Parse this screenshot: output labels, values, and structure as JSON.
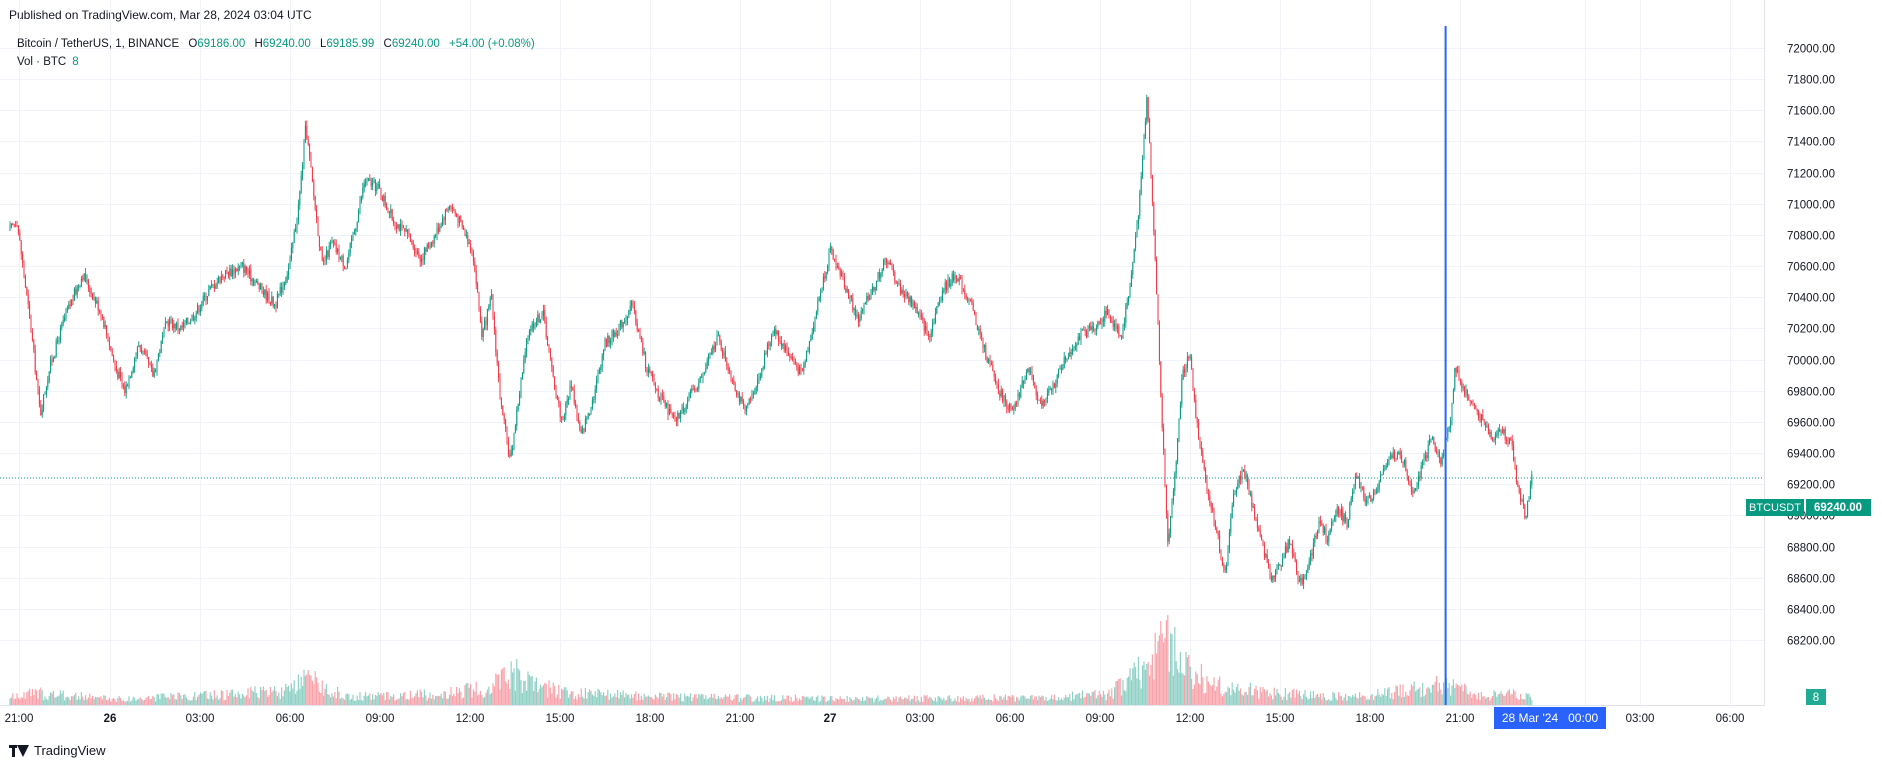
{
  "header": {
    "published": "Published on TradingView.com, Mar 28, 2024 03:04 UTC"
  },
  "legend": {
    "symbol": "Bitcoin / TetherUS, 1, BINANCE",
    "o_label": "O",
    "o_value": "69186.00",
    "h_label": "H",
    "h_value": "69240.00",
    "l_label": "L",
    "l_value": "69185.99",
    "c_label": "C",
    "c_value": "69240.00",
    "change": "+54.00 (+0.08%)",
    "volume_label": "Vol · BTC",
    "volume_value": "8"
  },
  "price_tag": {
    "symbol": "BTCUSDT",
    "value": "69240.00"
  },
  "volume_tag": "8",
  "crosshair_label": "28 Mar '24   00:00",
  "footer": {
    "brand": "TradingView"
  },
  "colors": {
    "up": "#089981",
    "down": "#f23645",
    "crosshair": "#2962ff",
    "grid": "#f0f3fa",
    "axis_text": "#131722"
  },
  "chart_data": {
    "type": "candlestick",
    "symbol": "BTCUSDT",
    "interval": "1",
    "exchange": "BINANCE",
    "last_price": 69240.0,
    "ylim": [
      68000,
      72200
    ],
    "y_ticks": [
      "68200.00",
      "68400.00",
      "68600.00",
      "68800.00",
      "69000.00",
      "69200.00",
      "69400.00",
      "69600.00",
      "69800.00",
      "70000.00",
      "70200.00",
      "70400.00",
      "70600.00",
      "70800.00",
      "71000.00",
      "71200.00",
      "71400.00",
      "71600.00",
      "71800.00",
      "72000.00"
    ],
    "x_ticks": [
      "21:00",
      "26",
      "03:00",
      "06:00",
      "09:00",
      "12:00",
      "15:00",
      "18:00",
      "21:00",
      "27",
      "03:00",
      "06:00",
      "09:00",
      "12:00",
      "15:00",
      "18:00",
      "21:00",
      "00:00",
      "03:00",
      "06:00"
    ],
    "x_start": "2024-03-25 21:00",
    "x_end": "2024-03-28 03:04",
    "crosshair_time": "2024-03-28 00:00",
    "price_path": [
      [
        "2024-03-25 21:00",
        70800
      ],
      [
        "2024-03-25 21:20",
        70900
      ],
      [
        "2024-03-25 21:50",
        70200
      ],
      [
        "2024-03-25 22:10",
        69650
      ],
      [
        "2024-03-25 22:30",
        69950
      ],
      [
        "2024-03-25 23:00",
        70250
      ],
      [
        "2024-03-25 23:40",
        70550
      ],
      [
        "2024-03-26 00:20",
        70300
      ],
      [
        "2024-03-26 00:50",
        69950
      ],
      [
        "2024-03-26 01:10",
        69800
      ],
      [
        "2024-03-26 01:40",
        70100
      ],
      [
        "2024-03-26 02:10",
        69900
      ],
      [
        "2024-03-26 02:40",
        70250
      ],
      [
        "2024-03-26 03:10",
        70200
      ],
      [
        "2024-03-26 03:40",
        70300
      ],
      [
        "2024-03-26 04:10",
        70450
      ],
      [
        "2024-03-26 04:40",
        70550
      ],
      [
        "2024-03-26 05:20",
        70600
      ],
      [
        "2024-03-26 06:00",
        70450
      ],
      [
        "2024-03-26 06:30",
        70350
      ],
      [
        "2024-03-26 07:00",
        70600
      ],
      [
        "2024-03-26 07:20",
        71000
      ],
      [
        "2024-03-26 07:35",
        71500
      ],
      [
        "2024-03-26 07:50",
        71100
      ],
      [
        "2024-03-26 08:10",
        70600
      ],
      [
        "2024-03-26 08:30",
        70750
      ],
      [
        "2024-03-26 09:00",
        70600
      ],
      [
        "2024-03-26 09:20",
        70850
      ],
      [
        "2024-03-26 09:40",
        71150
      ],
      [
        "2024-03-26 10:10",
        71100
      ],
      [
        "2024-03-26 10:40",
        70900
      ],
      [
        "2024-03-26 11:10",
        70800
      ],
      [
        "2024-03-26 11:40",
        70650
      ],
      [
        "2024-03-26 12:10",
        70800
      ],
      [
        "2024-03-26 12:40",
        71000
      ],
      [
        "2024-03-26 13:00",
        70900
      ],
      [
        "2024-03-26 13:30",
        70700
      ],
      [
        "2024-03-26 13:50",
        70150
      ],
      [
        "2024-03-26 14:10",
        70400
      ],
      [
        "2024-03-26 14:30",
        69700
      ],
      [
        "2024-03-26 14:50",
        69350
      ],
      [
        "2024-03-26 15:10",
        69800
      ],
      [
        "2024-03-26 15:30",
        70200
      ],
      [
        "2024-03-26 16:00",
        70300
      ],
      [
        "2024-03-26 16:20",
        69900
      ],
      [
        "2024-03-26 16:40",
        69600
      ],
      [
        "2024-03-26 17:00",
        69850
      ],
      [
        "2024-03-26 17:20",
        69500
      ],
      [
        "2024-03-26 17:50",
        69800
      ],
      [
        "2024-03-26 18:10",
        70100
      ],
      [
        "2024-03-26 18:40",
        70200
      ],
      [
        "2024-03-26 19:10",
        70350
      ],
      [
        "2024-03-26 19:40",
        69950
      ],
      [
        "2024-03-26 20:10",
        69750
      ],
      [
        "2024-03-26 20:40",
        69600
      ],
      [
        "2024-03-26 21:10",
        69750
      ],
      [
        "2024-03-26 21:40",
        69900
      ],
      [
        "2024-03-26 22:10",
        70150
      ],
      [
        "2024-03-26 22:40",
        69900
      ],
      [
        "2024-03-26 23:10",
        69650
      ],
      [
        "2024-03-26 23:40",
        69900
      ],
      [
        "2024-03-27 00:10",
        70200
      ],
      [
        "2024-03-27 00:40",
        70050
      ],
      [
        "2024-03-27 01:10",
        69900
      ],
      [
        "2024-03-27 01:40",
        70300
      ],
      [
        "2024-03-27 02:10",
        70700
      ],
      [
        "2024-03-27 02:40",
        70500
      ],
      [
        "2024-03-27 03:10",
        70250
      ],
      [
        "2024-03-27 03:40",
        70450
      ],
      [
        "2024-03-27 04:10",
        70650
      ],
      [
        "2024-03-27 04:40",
        70450
      ],
      [
        "2024-03-27 05:10",
        70350
      ],
      [
        "2024-03-27 05:40",
        70150
      ],
      [
        "2024-03-27 06:10",
        70450
      ],
      [
        "2024-03-27 06:40",
        70550
      ],
      [
        "2024-03-27 07:10",
        70350
      ],
      [
        "2024-03-27 07:40",
        70050
      ],
      [
        "2024-03-27 08:10",
        69800
      ],
      [
        "2024-03-27 08:40",
        69650
      ],
      [
        "2024-03-27 09:10",
        69950
      ],
      [
        "2024-03-27 09:40",
        69700
      ],
      [
        "2024-03-27 10:00",
        69800
      ],
      [
        "2024-03-27 10:30",
        70000
      ],
      [
        "2024-03-27 11:00",
        70150
      ],
      [
        "2024-03-27 11:30",
        70200
      ],
      [
        "2024-03-27 12:00",
        70300
      ],
      [
        "2024-03-27 12:30",
        70150
      ],
      [
        "2024-03-27 12:50",
        70500
      ],
      [
        "2024-03-27 13:10",
        71050
      ],
      [
        "2024-03-27 13:25",
        71700
      ],
      [
        "2024-03-27 13:40",
        70800
      ],
      [
        "2024-03-27 13:55",
        69700
      ],
      [
        "2024-03-27 14:10",
        68800
      ],
      [
        "2024-03-27 14:25",
        69300
      ],
      [
        "2024-03-27 14:40",
        69900
      ],
      [
        "2024-03-27 14:55",
        70050
      ],
      [
        "2024-03-27 15:10",
        69600
      ],
      [
        "2024-03-27 15:30",
        69200
      ],
      [
        "2024-03-27 15:50",
        68950
      ],
      [
        "2024-03-27 16:10",
        68600
      ],
      [
        "2024-03-27 16:30",
        69150
      ],
      [
        "2024-03-27 16:50",
        69300
      ],
      [
        "2024-03-27 17:10",
        69050
      ],
      [
        "2024-03-27 17:30",
        68800
      ],
      [
        "2024-03-27 17:50",
        68600
      ],
      [
        "2024-03-27 18:10",
        68700
      ],
      [
        "2024-03-27 18:30",
        68850
      ],
      [
        "2024-03-27 18:50",
        68550
      ],
      [
        "2024-03-27 19:10",
        68700
      ],
      [
        "2024-03-27 19:30",
        68950
      ],
      [
        "2024-03-27 19:50",
        68850
      ],
      [
        "2024-03-27 20:10",
        69050
      ],
      [
        "2024-03-27 20:30",
        68950
      ],
      [
        "2024-03-27 20:50",
        69250
      ],
      [
        "2024-03-27 21:10",
        69100
      ],
      [
        "2024-03-27 21:30",
        69150
      ],
      [
        "2024-03-27 21:50",
        69300
      ],
      [
        "2024-03-27 22:10",
        69400
      ],
      [
        "2024-03-27 22:30",
        69350
      ],
      [
        "2024-03-27 22:50",
        69150
      ],
      [
        "2024-03-27 23:10",
        69300
      ],
      [
        "2024-03-27 23:30",
        69500
      ],
      [
        "2024-03-27 23:50",
        69350
      ],
      [
        "2024-03-28 00:10",
        69600
      ],
      [
        "2024-03-28 00:20",
        69950
      ],
      [
        "2024-03-28 00:40",
        69800
      ],
      [
        "2024-03-28 01:00",
        69700
      ],
      [
        "2024-03-28 01:20",
        69600
      ],
      [
        "2024-03-28 01:40",
        69500
      ],
      [
        "2024-03-28 02:00",
        69550
      ],
      [
        "2024-03-28 02:20",
        69450
      ],
      [
        "2024-03-28 02:35",
        69150
      ],
      [
        "2024-03-28 02:50",
        69000
      ],
      [
        "2024-03-28 03:04",
        69240
      ]
    ],
    "volume_path": [
      [
        "2024-03-25 21:00",
        6
      ],
      [
        "2024-03-25 22:00",
        10
      ],
      [
        "2024-03-26 01:00",
        5
      ],
      [
        "2024-03-26 04:00",
        8
      ],
      [
        "2024-03-26 07:00",
        12
      ],
      [
        "2024-03-26 07:40",
        22
      ],
      [
        "2024-03-26 09:00",
        7
      ],
      [
        "2024-03-26 12:00",
        9
      ],
      [
        "2024-03-26 14:00",
        14
      ],
      [
        "2024-03-26 14:50",
        30
      ],
      [
        "2024-03-26 15:30",
        18
      ],
      [
        "2024-03-26 17:00",
        10
      ],
      [
        "2024-03-26 20:00",
        7
      ],
      [
        "2024-03-27 00:00",
        6
      ],
      [
        "2024-03-27 03:00",
        5
      ],
      [
        "2024-03-27 06:00",
        6
      ],
      [
        "2024-03-27 09:00",
        6
      ],
      [
        "2024-03-27 12:00",
        9
      ],
      [
        "2024-03-27 13:00",
        25
      ],
      [
        "2024-03-27 13:40",
        40
      ],
      [
        "2024-03-27 14:10",
        55
      ],
      [
        "2024-03-27 14:40",
        35
      ],
      [
        "2024-03-27 15:30",
        20
      ],
      [
        "2024-03-27 16:10",
        15
      ],
      [
        "2024-03-27 18:00",
        10
      ],
      [
        "2024-03-27 21:00",
        7
      ],
      [
        "2024-03-28 00:10",
        18
      ],
      [
        "2024-03-28 01:00",
        8
      ],
      [
        "2024-03-28 02:40",
        10
      ],
      [
        "2024-03-28 03:04",
        8
      ]
    ]
  }
}
